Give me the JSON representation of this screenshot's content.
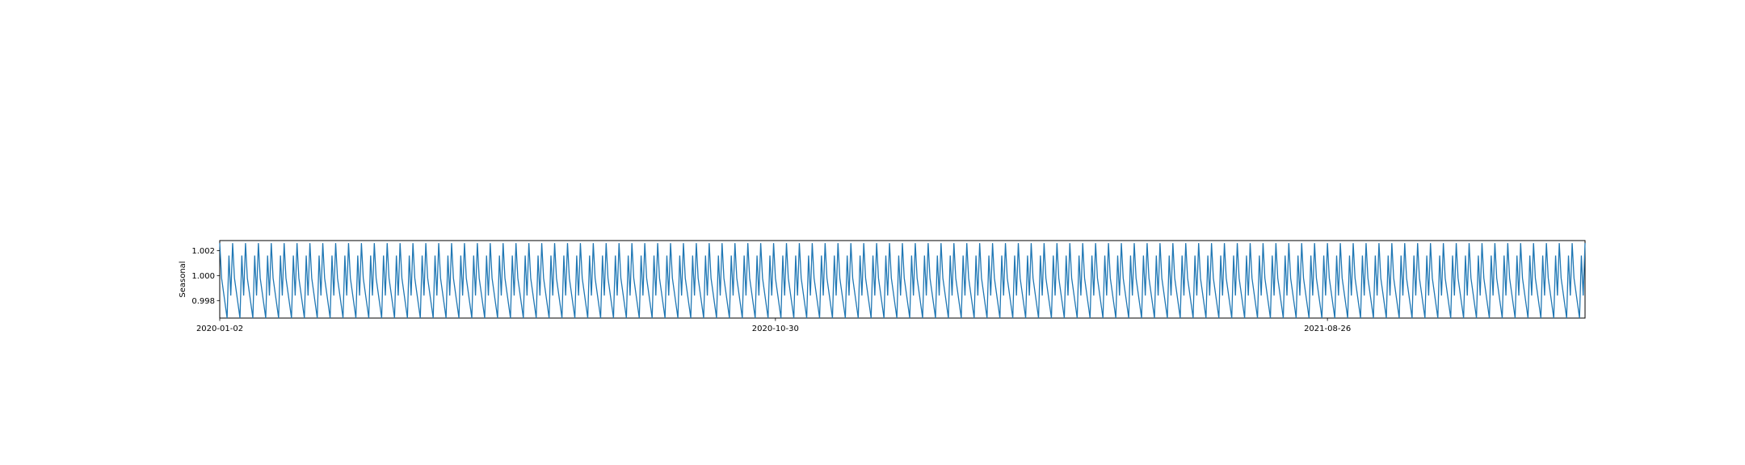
{
  "chart_data": {
    "type": "line",
    "title": "",
    "xlabel": "",
    "ylabel": "Seasonal",
    "ylim": [
      0.9966,
      1.0028
    ],
    "xlim": [
      "2020-01-02",
      "2022-01-13"
    ],
    "grid": false,
    "legend": "none",
    "color": "#1f77b4",
    "x_ticks": [
      "2020-01-02",
      "2020-10-30",
      "2021-08-26"
    ],
    "y_ticks": [
      "0.998",
      "1.000",
      "1.002"
    ],
    "seasonal_pattern": {
      "period": 5,
      "values": [
        1.0026,
        0.9998,
        0.9966,
        1.0016,
        0.9984
      ]
    },
    "start": "2020-01-02",
    "end": "2022-01-13"
  }
}
